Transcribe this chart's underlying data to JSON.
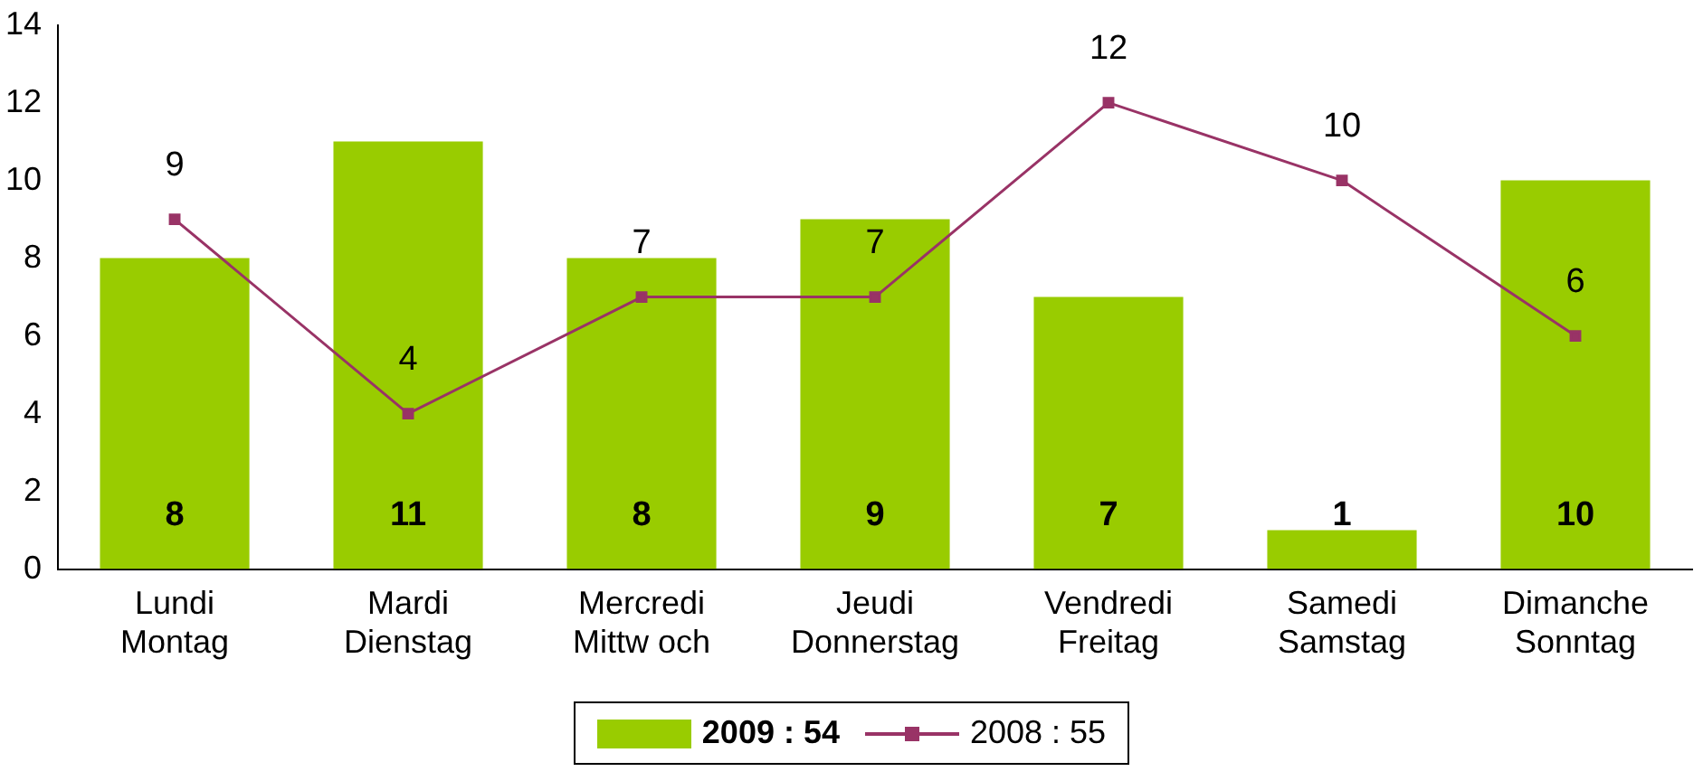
{
  "chart_data": {
    "type": "bar",
    "categories": [
      "Lundi\nMontag",
      "Mardi\nDienstag",
      "Mercredi\nMittw och",
      "Jeudi\nDonnerstag",
      "Vendredi\nFreitag",
      "Samedi\nSamstag",
      "Dimanche\nSonntag"
    ],
    "series": [
      {
        "name": "2009 : 54",
        "color": "#99cc00",
        "values": [
          8,
          11,
          8,
          9,
          7,
          1,
          10
        ]
      },
      {
        "name": "2008 : 55",
        "type": "line",
        "color": "#993366",
        "values": [
          9,
          4,
          7,
          7,
          12,
          10,
          6
        ]
      }
    ],
    "ylim": [
      0,
      14
    ],
    "yticks": [
      0,
      2,
      4,
      6,
      8,
      10,
      12,
      14
    ],
    "grid": false,
    "legend": "bottom",
    "marker": "square",
    "data_labels": true
  }
}
